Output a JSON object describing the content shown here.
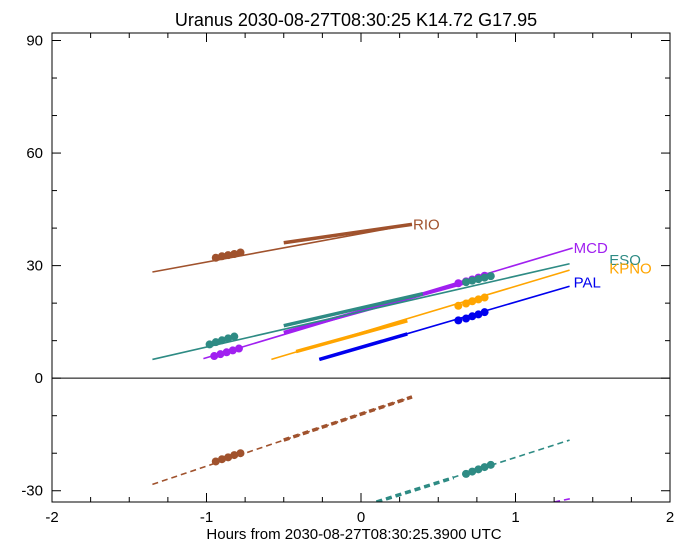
{
  "chart_data": {
    "type": "line",
    "title": "Uranus 2030-08-27T08:30:25  K14.72  G17.95",
    "xlabel": "Hours from 2030-08-27T08:30:25.3900 UTC",
    "ylabel": "",
    "xlim": [
      -2,
      2
    ],
    "ylim": [
      -33,
      92
    ],
    "x_ticks": [
      -2,
      -1,
      0,
      1,
      2
    ],
    "y_ticks": [
      -30,
      0,
      30,
      60,
      90
    ],
    "x_tick_labels": [
      "-2",
      "-1",
      "0",
      "1",
      "2"
    ],
    "y_tick_labels": [
      "-30",
      "0",
      "30",
      "60",
      "90"
    ],
    "zero_line": true,
    "grid": false,
    "series": [
      {
        "name": "RIO",
        "color": "#a0522d",
        "solid_x": [
          -1.35,
          0.33
        ],
        "solid_y": [
          28.3,
          41.0
        ],
        "thick_x": [
          -0.5,
          0.33
        ],
        "thick_y": [
          36.1,
          41.0
        ],
        "markers_x": [
          -0.94,
          -0.9,
          -0.86,
          -0.82,
          -0.78
        ],
        "markers_y": [
          32.1,
          32.5,
          32.8,
          33.1,
          33.5
        ],
        "dashed_x": [
          -1.35,
          0.33
        ],
        "dashed_y": [
          -28.3,
          -5.0
        ],
        "dashed_thick_x": [
          -0.5,
          0.33
        ],
        "dashed_thick_y": [
          -16.5,
          -5.0
        ],
        "dashed_markers_x": [
          -0.94,
          -0.9,
          -0.86,
          -0.82,
          -0.78
        ],
        "dashed_markers_y": [
          -22.2,
          -21.6,
          -21.1,
          -20.5,
          -20.0
        ]
      },
      {
        "name": "MCD",
        "color": "#a020f0",
        "solid_x": [
          -1.02,
          1.37
        ],
        "solid_y": [
          5.2,
          34.7
        ],
        "thick_x": [
          -0.5,
          0.66
        ],
        "thick_y": [
          12.2,
          25.3
        ],
        "markers_x": [
          -0.95,
          -0.91,
          -0.87,
          -0.83,
          -0.79,
          0.63,
          0.68,
          0.72,
          0.76,
          0.8
        ],
        "markers_y": [
          5.9,
          6.4,
          6.9,
          7.4,
          7.9,
          25.3,
          25.8,
          26.3,
          26.8,
          27.3
        ],
        "dashed_x": [
          1.25,
          1.37
        ],
        "dashed_y": [
          -33.0,
          -32.0
        ],
        "dashed_thick_x": [],
        "dashed_thick_y": [],
        "dashed_markers_x": [],
        "dashed_markers_y": []
      },
      {
        "name": "ESO",
        "color": "#2e8b84",
        "solid_x": [
          -1.35,
          1.35
        ],
        "solid_y": [
          5.0,
          30.5
        ],
        "thick_x": [
          -0.5,
          0.4
        ],
        "thick_y": [
          14.0,
          22.5
        ],
        "markers_x": [
          -0.98,
          -0.94,
          -0.9,
          -0.86,
          -0.82,
          0.68,
          0.72,
          0.76,
          0.8,
          0.84
        ],
        "markers_y": [
          9.0,
          9.6,
          10.1,
          10.6,
          11.1,
          25.6,
          26.0,
          26.4,
          26.8,
          27.2
        ],
        "dashed_x": [
          0.1,
          1.35
        ],
        "dashed_y": [
          -33.0,
          -16.5
        ],
        "dashed_thick_x": [
          0.1,
          0.6
        ],
        "dashed_thick_y": [
          -33.0,
          -26.5
        ],
        "dashed_markers_x": [
          0.68,
          0.72,
          0.76,
          0.8,
          0.84
        ],
        "dashed_markers_y": [
          -25.5,
          -24.9,
          -24.3,
          -23.7,
          -23.1
        ]
      },
      {
        "name": "KPNO",
        "color": "#ffa500",
        "solid_x": [
          -0.58,
          1.35
        ],
        "solid_y": [
          5.0,
          28.8
        ],
        "thick_x": [
          -0.42,
          0.3
        ],
        "thick_y": [
          7.1,
          15.3
        ],
        "markers_x": [
          0.63,
          0.68,
          0.72,
          0.76,
          0.8
        ],
        "markers_y": [
          19.3,
          19.9,
          20.5,
          21.0,
          21.5
        ],
        "dashed_x": [],
        "dashed_y": [],
        "dashed_thick_x": [],
        "dashed_thick_y": [],
        "dashed_markers_x": [],
        "dashed_markers_y": []
      },
      {
        "name": "PAL",
        "color": "#0000ee",
        "solid_x": [
          -0.27,
          1.35
        ],
        "solid_y": [
          5.0,
          24.5
        ],
        "thick_x": [
          -0.27,
          0.3
        ],
        "thick_y": [
          5.0,
          11.8
        ],
        "markers_x": [
          0.63,
          0.68,
          0.72,
          0.76,
          0.8
        ],
        "markers_y": [
          15.4,
          15.9,
          16.5,
          17.0,
          17.6
        ],
        "dashed_x": [],
        "dashed_y": [],
        "dashed_thick_x": [],
        "dashed_thick_y": [],
        "dashed_markers_x": [],
        "dashed_markers_y": []
      }
    ],
    "labels": [
      {
        "text": "RIO",
        "x": 0.33,
        "y": 41.0,
        "color": "#a0522d"
      },
      {
        "text": "MCD",
        "x": 1.37,
        "y": 34.7,
        "color": "#a020f0"
      },
      {
        "text": "ESO",
        "x": 1.6,
        "y": 31.5,
        "color": "#2e8b84"
      },
      {
        "text": "KPNO",
        "x": 1.6,
        "y": 29.2,
        "color": "#ffa500"
      },
      {
        "text": "PAL",
        "x": 1.37,
        "y": 25.5,
        "color": "#0000ee"
      }
    ]
  }
}
